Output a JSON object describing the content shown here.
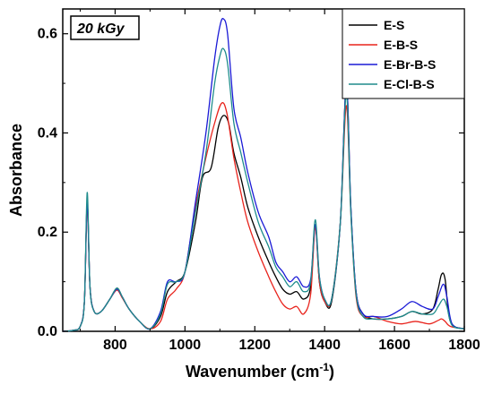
{
  "chart_data": {
    "type": "line",
    "annotation": "20 kGy",
    "xlabel_main": "Wavenumber (cm",
    "xlabel_sup": "-1",
    "xlabel_close": ")",
    "ylabel": "Absorbance",
    "xlim": [
      650,
      1800
    ],
    "ylim": [
      0.0,
      0.65
    ],
    "xticks": [
      800,
      1000,
      1200,
      1400,
      1600,
      1800
    ],
    "yticks": [
      0.0,
      0.2,
      0.4,
      0.6
    ],
    "xtick_labels": [
      "800",
      "1000",
      "1200",
      "1400",
      "1600",
      "1800"
    ],
    "ytick_labels": [
      "0.0",
      "0.2",
      "0.4",
      "0.6"
    ],
    "legend_position": "top-right",
    "series": [
      {
        "name": "E-S",
        "color": "#000000",
        "points": [
          [
            650,
            0.0
          ],
          [
            680,
            0.002
          ],
          [
            700,
            0.01
          ],
          [
            712,
            0.06
          ],
          [
            720,
            0.26
          ],
          [
            728,
            0.09
          ],
          [
            740,
            0.04
          ],
          [
            760,
            0.04
          ],
          [
            785,
            0.065
          ],
          [
            805,
            0.087
          ],
          [
            820,
            0.07
          ],
          [
            840,
            0.045
          ],
          [
            870,
            0.02
          ],
          [
            900,
            0.005
          ],
          [
            930,
            0.03
          ],
          [
            950,
            0.08
          ],
          [
            975,
            0.1
          ],
          [
            1000,
            0.12
          ],
          [
            1030,
            0.22
          ],
          [
            1050,
            0.31
          ],
          [
            1075,
            0.33
          ],
          [
            1095,
            0.41
          ],
          [
            1110,
            0.435
          ],
          [
            1125,
            0.42
          ],
          [
            1140,
            0.36
          ],
          [
            1160,
            0.31
          ],
          [
            1180,
            0.25
          ],
          [
            1210,
            0.19
          ],
          [
            1240,
            0.14
          ],
          [
            1260,
            0.11
          ],
          [
            1280,
            0.085
          ],
          [
            1300,
            0.075
          ],
          [
            1320,
            0.08
          ],
          [
            1340,
            0.065
          ],
          [
            1360,
            0.09
          ],
          [
            1373,
            0.215
          ],
          [
            1385,
            0.1
          ],
          [
            1400,
            0.06
          ],
          [
            1420,
            0.06
          ],
          [
            1445,
            0.22
          ],
          [
            1462,
            0.5
          ],
          [
            1475,
            0.25
          ],
          [
            1490,
            0.08
          ],
          [
            1510,
            0.035
          ],
          [
            1540,
            0.025
          ],
          [
            1580,
            0.025
          ],
          [
            1620,
            0.03
          ],
          [
            1650,
            0.04
          ],
          [
            1680,
            0.035
          ],
          [
            1710,
            0.045
          ],
          [
            1725,
            0.085
          ],
          [
            1735,
            0.115
          ],
          [
            1745,
            0.105
          ],
          [
            1760,
            0.02
          ],
          [
            1800,
            0.005
          ]
        ]
      },
      {
        "name": "E-B-S",
        "color": "#e8231c",
        "points": [
          [
            650,
            0.0
          ],
          [
            680,
            0.002
          ],
          [
            700,
            0.01
          ],
          [
            712,
            0.06
          ],
          [
            720,
            0.255
          ],
          [
            728,
            0.09
          ],
          [
            740,
            0.04
          ],
          [
            760,
            0.04
          ],
          [
            785,
            0.065
          ],
          [
            805,
            0.083
          ],
          [
            820,
            0.068
          ],
          [
            840,
            0.045
          ],
          [
            870,
            0.02
          ],
          [
            900,
            0.005
          ],
          [
            930,
            0.02
          ],
          [
            950,
            0.065
          ],
          [
            975,
            0.085
          ],
          [
            1000,
            0.12
          ],
          [
            1030,
            0.25
          ],
          [
            1060,
            0.35
          ],
          [
            1085,
            0.42
          ],
          [
            1105,
            0.46
          ],
          [
            1120,
            0.44
          ],
          [
            1140,
            0.35
          ],
          [
            1160,
            0.28
          ],
          [
            1180,
            0.22
          ],
          [
            1210,
            0.16
          ],
          [
            1240,
            0.11
          ],
          [
            1260,
            0.08
          ],
          [
            1280,
            0.055
          ],
          [
            1300,
            0.045
          ],
          [
            1320,
            0.05
          ],
          [
            1340,
            0.035
          ],
          [
            1360,
            0.075
          ],
          [
            1373,
            0.21
          ],
          [
            1385,
            0.1
          ],
          [
            1400,
            0.06
          ],
          [
            1420,
            0.065
          ],
          [
            1445,
            0.22
          ],
          [
            1462,
            0.455
          ],
          [
            1475,
            0.24
          ],
          [
            1490,
            0.07
          ],
          [
            1510,
            0.03
          ],
          [
            1540,
            0.03
          ],
          [
            1580,
            0.02
          ],
          [
            1620,
            0.015
          ],
          [
            1660,
            0.02
          ],
          [
            1700,
            0.015
          ],
          [
            1725,
            0.022
          ],
          [
            1735,
            0.025
          ],
          [
            1745,
            0.02
          ],
          [
            1760,
            0.01
          ],
          [
            1800,
            0.005
          ]
        ]
      },
      {
        "name": "E-Br-B-S",
        "color": "#1a1ad6",
        "points": [
          [
            650,
            0.0
          ],
          [
            680,
            0.002
          ],
          [
            700,
            0.01
          ],
          [
            712,
            0.06
          ],
          [
            720,
            0.26
          ],
          [
            728,
            0.09
          ],
          [
            740,
            0.04
          ],
          [
            760,
            0.04
          ],
          [
            785,
            0.065
          ],
          [
            805,
            0.085
          ],
          [
            820,
            0.07
          ],
          [
            840,
            0.045
          ],
          [
            870,
            0.02
          ],
          [
            900,
            0.005
          ],
          [
            930,
            0.04
          ],
          [
            950,
            0.1
          ],
          [
            975,
            0.1
          ],
          [
            1000,
            0.12
          ],
          [
            1030,
            0.26
          ],
          [
            1060,
            0.4
          ],
          [
            1085,
            0.55
          ],
          [
            1100,
            0.615
          ],
          [
            1110,
            0.63
          ],
          [
            1122,
            0.6
          ],
          [
            1140,
            0.45
          ],
          [
            1160,
            0.39
          ],
          [
            1180,
            0.32
          ],
          [
            1210,
            0.24
          ],
          [
            1240,
            0.19
          ],
          [
            1260,
            0.14
          ],
          [
            1280,
            0.12
          ],
          [
            1300,
            0.1
          ],
          [
            1320,
            0.11
          ],
          [
            1340,
            0.09
          ],
          [
            1360,
            0.105
          ],
          [
            1373,
            0.215
          ],
          [
            1385,
            0.11
          ],
          [
            1400,
            0.065
          ],
          [
            1420,
            0.065
          ],
          [
            1445,
            0.22
          ],
          [
            1462,
            0.5
          ],
          [
            1475,
            0.25
          ],
          [
            1490,
            0.08
          ],
          [
            1510,
            0.035
          ],
          [
            1540,
            0.03
          ],
          [
            1580,
            0.03
          ],
          [
            1620,
            0.045
          ],
          [
            1650,
            0.06
          ],
          [
            1680,
            0.05
          ],
          [
            1710,
            0.045
          ],
          [
            1725,
            0.07
          ],
          [
            1740,
            0.095
          ],
          [
            1750,
            0.07
          ],
          [
            1765,
            0.015
          ],
          [
            1800,
            0.005
          ]
        ]
      },
      {
        "name": "E-Cl-B-S",
        "color": "#1e8c8c",
        "points": [
          [
            650,
            0.0
          ],
          [
            680,
            0.002
          ],
          [
            700,
            0.01
          ],
          [
            712,
            0.06
          ],
          [
            720,
            0.28
          ],
          [
            728,
            0.09
          ],
          [
            740,
            0.04
          ],
          [
            760,
            0.04
          ],
          [
            785,
            0.065
          ],
          [
            805,
            0.087
          ],
          [
            820,
            0.07
          ],
          [
            840,
            0.045
          ],
          [
            870,
            0.02
          ],
          [
            900,
            0.005
          ],
          [
            930,
            0.035
          ],
          [
            950,
            0.095
          ],
          [
            975,
            0.1
          ],
          [
            1000,
            0.12
          ],
          [
            1030,
            0.24
          ],
          [
            1060,
            0.36
          ],
          [
            1085,
            0.5
          ],
          [
            1100,
            0.555
          ],
          [
            1110,
            0.57
          ],
          [
            1122,
            0.54
          ],
          [
            1140,
            0.42
          ],
          [
            1160,
            0.36
          ],
          [
            1180,
            0.3
          ],
          [
            1210,
            0.22
          ],
          [
            1240,
            0.17
          ],
          [
            1260,
            0.13
          ],
          [
            1280,
            0.11
          ],
          [
            1300,
            0.09
          ],
          [
            1320,
            0.1
          ],
          [
            1340,
            0.08
          ],
          [
            1360,
            0.1
          ],
          [
            1373,
            0.225
          ],
          [
            1385,
            0.11
          ],
          [
            1400,
            0.065
          ],
          [
            1420,
            0.065
          ],
          [
            1445,
            0.22
          ],
          [
            1462,
            0.48
          ],
          [
            1475,
            0.24
          ],
          [
            1490,
            0.075
          ],
          [
            1510,
            0.03
          ],
          [
            1540,
            0.025
          ],
          [
            1580,
            0.025
          ],
          [
            1620,
            0.03
          ],
          [
            1650,
            0.04
          ],
          [
            1680,
            0.035
          ],
          [
            1710,
            0.035
          ],
          [
            1725,
            0.05
          ],
          [
            1740,
            0.065
          ],
          [
            1750,
            0.05
          ],
          [
            1765,
            0.012
          ],
          [
            1800,
            0.005
          ]
        ]
      }
    ]
  }
}
